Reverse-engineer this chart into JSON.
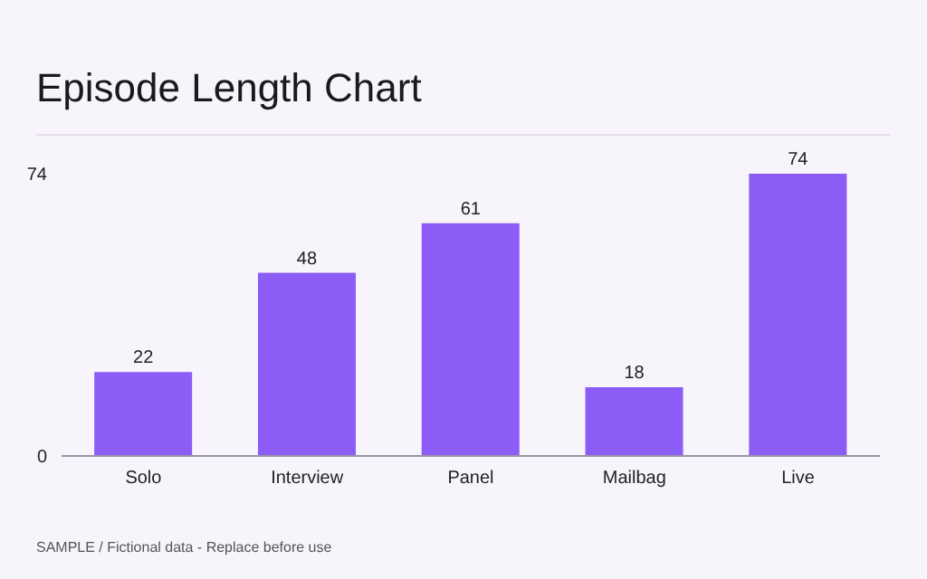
{
  "chart_data": {
    "type": "bar",
    "title": "Episode Length Chart",
    "categories": [
      "Solo",
      "Interview",
      "Panel",
      "Mailbag",
      "Live"
    ],
    "values": [
      22,
      48,
      61,
      18,
      74
    ],
    "color": "#8b5cf6",
    "ylim": [
      0,
      74
    ],
    "yticks": [
      0,
      74
    ],
    "grid": false,
    "data_labels": true,
    "annotations": [
      "SAMPLE / Fictional data - Replace before use"
    ]
  }
}
